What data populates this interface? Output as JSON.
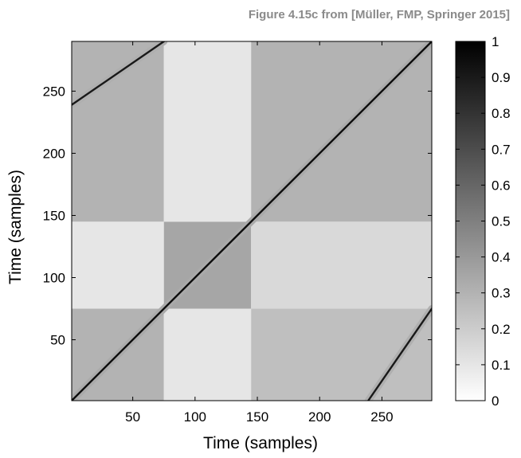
{
  "caption": "Figure 4.15c from [Müller, FMP, Springer 2015]",
  "chart_data": {
    "type": "heatmap",
    "title": "",
    "xlabel": "Time (samples)",
    "ylabel": "Time (samples)",
    "xlim": [
      1,
      290
    ],
    "ylim": [
      1,
      290
    ],
    "xticks": [
      50,
      100,
      150,
      200,
      250
    ],
    "yticks": [
      50,
      100,
      150,
      200,
      250
    ],
    "colormap": "gray-reversed",
    "colorbar": {
      "range": [
        0,
        1
      ],
      "ticks": [
        "0",
        "0.1",
        "0.2",
        "0.3",
        "0.4",
        "0.5",
        "0.6",
        "0.7",
        "0.8",
        "0.9",
        "1"
      ],
      "low_color": "#ffffff",
      "high_color": "#000000"
    },
    "structure": {
      "main_diagonal": {
        "from": [
          1,
          1
        ],
        "to": [
          290,
          290
        ],
        "value": 0.95
      },
      "paths": [
        {
          "from": [
            1,
            239
          ],
          "to": [
            75,
            290
          ],
          "value": 0.9
        },
        {
          "from": [
            239,
            1
          ],
          "to": [
            290,
            75
          ],
          "value": 0.9
        }
      ],
      "section_boundaries": [
        75,
        145
      ],
      "block_levels": [
        {
          "x": [
            1,
            75
          ],
          "y": [
            1,
            75
          ],
          "value": 0.3
        },
        {
          "x": [
            1,
            75
          ],
          "y": [
            75,
            145
          ],
          "value": 0.1
        },
        {
          "x": [
            1,
            75
          ],
          "y": [
            145,
            290
          ],
          "value": 0.3
        },
        {
          "x": [
            75,
            145
          ],
          "y": [
            1,
            75
          ],
          "value": 0.1
        },
        {
          "x": [
            75,
            145
          ],
          "y": [
            75,
            145
          ],
          "value": 0.35
        },
        {
          "x": [
            75,
            145
          ],
          "y": [
            145,
            290
          ],
          "value": 0.1
        },
        {
          "x": [
            145,
            290
          ],
          "y": [
            1,
            75
          ],
          "value": 0.25
        },
        {
          "x": [
            145,
            290
          ],
          "y": [
            75,
            145
          ],
          "value": 0.15
        },
        {
          "x": [
            145,
            290
          ],
          "y": [
            145,
            290
          ],
          "value": 0.3
        }
      ]
    }
  }
}
